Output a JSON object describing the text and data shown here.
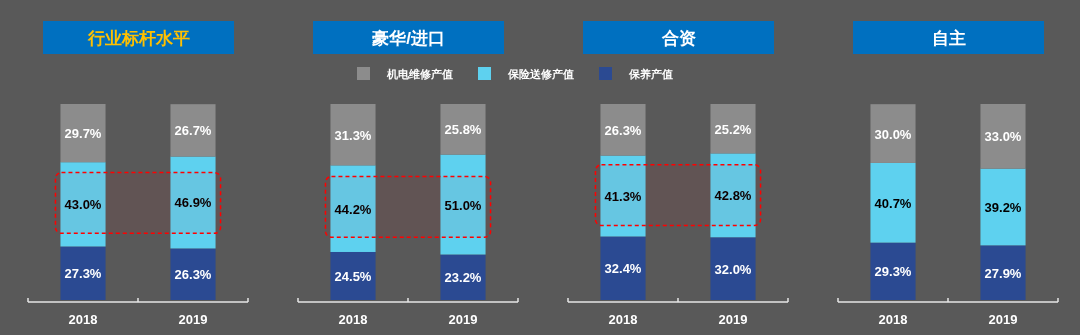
{
  "chart_data": [
    {
      "type": "bar",
      "title": "行业标杆水平",
      "categories": [
        "2018",
        "2019"
      ],
      "stacked": true,
      "series": [
        {
          "color": "#2b4a92",
          "values": [
            27.3,
            26.3
          ],
          "value_labels": [
            "27.3%",
            "26.3%"
          ]
        },
        {
          "color": "#5ed1ef",
          "values": [
            43.0,
            46.9
          ],
          "value_labels": [
            "43.0%",
            "46.9%"
          ]
        },
        {
          "color": "#8c8c8c",
          "values": [
            29.7,
            26.7
          ],
          "value_labels": [
            "29.7%",
            "26.7%"
          ]
        }
      ],
      "bands": [
        {
          "axis": "y",
          "from": 34,
          "to": 65,
          "color": "#ff0000"
        }
      ]
    },
    {
      "type": "bar",
      "title": "豪华/进口",
      "categories": [
        "2018",
        "2019"
      ],
      "stacked": true,
      "legend": "top",
      "series": [
        {
          "name": "保养产值",
          "color": "#2b4a92",
          "values": [
            24.5,
            23.2
          ],
          "value_labels": [
            "24.5%",
            "23.2%"
          ]
        },
        {
          "name": "保险送修产值",
          "color": "#5ed1ef",
          "values": [
            44.2,
            51.0
          ],
          "value_labels": [
            "44.2%",
            "51.0%"
          ]
        },
        {
          "name": "机电维修产值",
          "color": "#8c8c8c",
          "values": [
            31.3,
            25.8
          ],
          "value_labels": [
            "31.3%",
            "25.8%"
          ]
        }
      ],
      "bands": [
        {
          "axis": "y",
          "from": 32,
          "to": 63,
          "color": "#ff0000"
        }
      ]
    },
    {
      "type": "bar",
      "title": "合资",
      "categories": [
        "2018",
        "2019"
      ],
      "stacked": true,
      "series": [
        {
          "color": "#2b4a92",
          "values": [
            32.4,
            32.0
          ],
          "value_labels": [
            "32.4%",
            "32.0%"
          ]
        },
        {
          "color": "#5ed1ef",
          "values": [
            41.3,
            42.8
          ],
          "value_labels": [
            "41.3%",
            "42.8%"
          ]
        },
        {
          "color": "#8c8c8c",
          "values": [
            26.3,
            25.2
          ],
          "value_labels": [
            "26.3%",
            "25.2%"
          ]
        }
      ],
      "bands": [
        {
          "axis": "y",
          "from": 38,
          "to": 69,
          "color": "#ff0000"
        }
      ]
    },
    {
      "type": "bar",
      "title": "自主",
      "categories": [
        "2018",
        "2019"
      ],
      "stacked": true,
      "series": [
        {
          "color": "#2b4a92",
          "values": [
            29.3,
            27.9
          ],
          "value_labels": [
            "29.3%",
            "27.9%"
          ]
        },
        {
          "color": "#5ed1ef",
          "values": [
            40.7,
            39.2
          ],
          "value_labels": [
            "40.7%",
            "39.2%"
          ]
        },
        {
          "color": "#8c8c8c",
          "values": [
            30.0,
            33.0
          ],
          "value_labels": [
            "30.0%",
            "33.0%"
          ]
        }
      ]
    }
  ]
}
